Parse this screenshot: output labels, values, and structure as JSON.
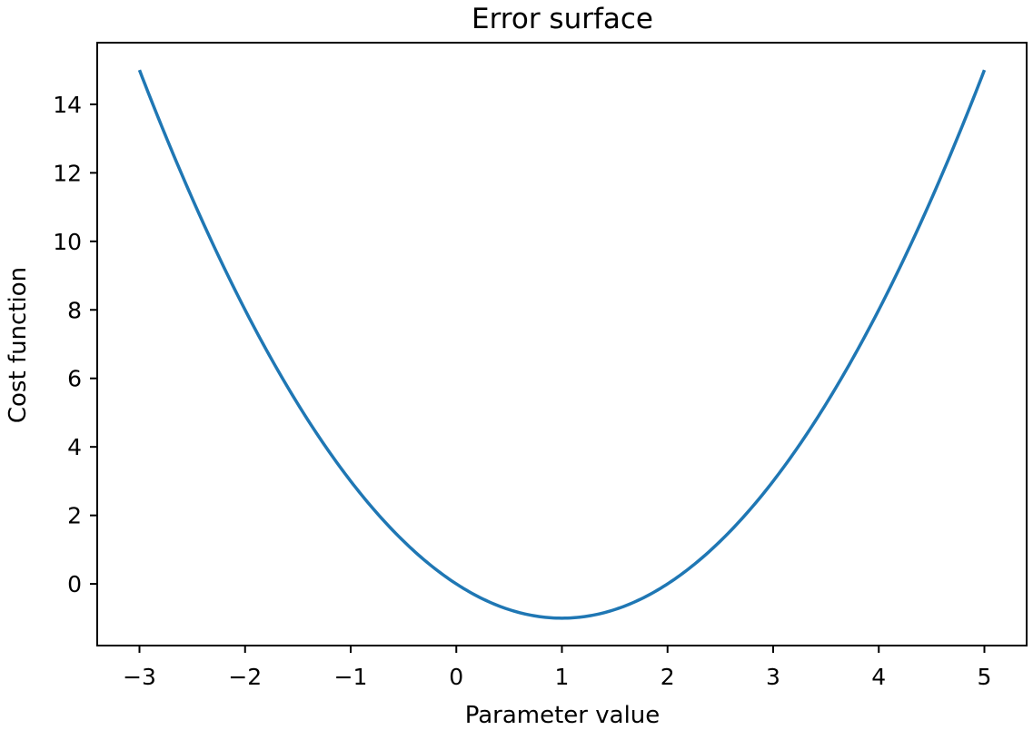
{
  "chart_data": {
    "type": "line",
    "title": "Error surface",
    "xlabel": "Parameter value",
    "ylabel": "Cost function",
    "xlim": [
      -3.4,
      5.4
    ],
    "ylim": [
      -1.8,
      15.8
    ],
    "x_ticks": [
      -3,
      -2,
      -1,
      0,
      1,
      2,
      3,
      4,
      5
    ],
    "x_tick_labels": [
      "−3",
      "−2",
      "−1",
      "0",
      "1",
      "2",
      "3",
      "4",
      "5"
    ],
    "y_ticks": [
      0,
      2,
      4,
      6,
      8,
      10,
      12,
      14
    ],
    "y_tick_labels": [
      "0",
      "2",
      "4",
      "6",
      "8",
      "10",
      "12",
      "14"
    ],
    "grid": false,
    "series": [
      {
        "color": "#1f77b4",
        "x": [
          -3,
          -2.5,
          -2,
          -1.5,
          -1,
          -0.5,
          0,
          0.5,
          1,
          1.5,
          2,
          2.5,
          3,
          3.5,
          4,
          4.5,
          5
        ],
        "y": [
          15,
          11.25,
          8,
          5.25,
          3,
          1.25,
          0,
          -0.75,
          -1,
          -0.75,
          0,
          1.25,
          3,
          5.25,
          8,
          11.25,
          15
        ]
      }
    ]
  }
}
